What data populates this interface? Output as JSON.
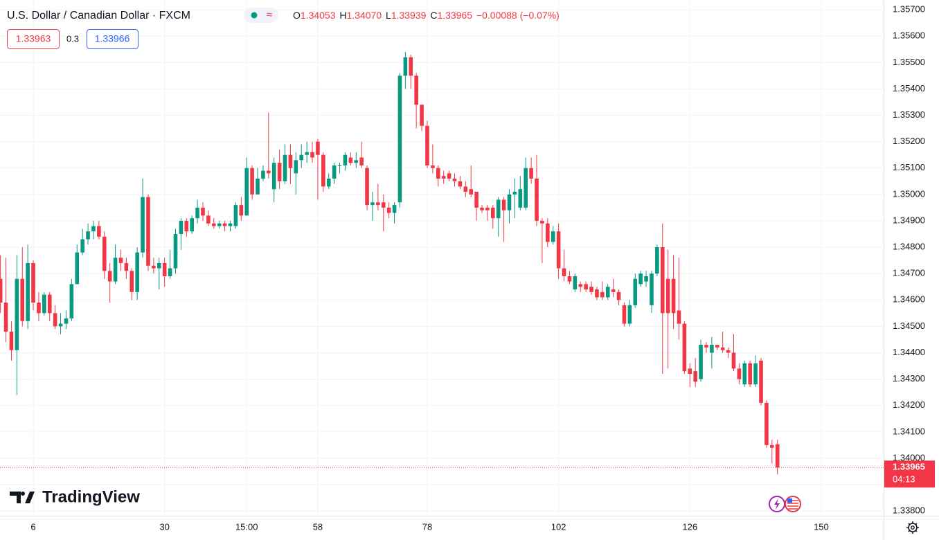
{
  "header": {
    "symbol": "U.S. Dollar / Canadian Dollar · FXCM",
    "ohlc": [
      {
        "key": "O",
        "value": "1.34053"
      },
      {
        "key": "H",
        "value": "1.34070"
      },
      {
        "key": "L",
        "value": "1.33939"
      },
      {
        "key": "C",
        "value": "1.33965"
      }
    ],
    "change": "−0.00088 (−0.07%)",
    "bid": "1.33963",
    "spread": "0.3",
    "ask": "1.33966",
    "countdown": "04:13",
    "logo": "TradingView"
  },
  "chart_data": {
    "type": "candlestick",
    "colors": {
      "up": "#089981",
      "down": "#f23645"
    },
    "xlim": [
      -0.08,
      161.4
    ],
    "ylim": [
      1.33782,
      1.35737
    ],
    "xticks": [
      6,
      30,
      {
        "value": 45,
        "label": "15:00"
      },
      58,
      78,
      102,
      126,
      150
    ],
    "yticks": [
      {
        "value": 1.338,
        "label": "1.33800"
      },
      {
        "value": 1.339,
        "label": "1.33900"
      },
      {
        "value": 1.34,
        "label": "1.34000"
      },
      {
        "value": 1.341,
        "label": "1.34100"
      },
      {
        "value": 1.342,
        "label": "1.34200"
      },
      {
        "value": 1.343,
        "label": "1.34300"
      },
      {
        "value": 1.344,
        "label": "1.34400"
      },
      {
        "value": 1.345,
        "label": "1.34500"
      },
      {
        "value": 1.346,
        "label": "1.34600"
      },
      {
        "value": 1.347,
        "label": "1.34700"
      },
      {
        "value": 1.348,
        "label": "1.34800"
      },
      {
        "value": 1.349,
        "label": "1.34900"
      },
      {
        "value": 1.35,
        "label": "1.35000"
      },
      {
        "value": 1.351,
        "label": "1.35100"
      },
      {
        "value": 1.352,
        "label": "1.35200"
      },
      {
        "value": 1.353,
        "label": "1.35300"
      },
      {
        "value": 1.354,
        "label": "1.35400"
      },
      {
        "value": 1.355,
        "label": "1.35500"
      },
      {
        "value": 1.356,
        "label": "1.35600"
      },
      {
        "value": 1.357,
        "label": "1.35700"
      }
    ],
    "grid": true,
    "open": [
      1.3468,
      1.3459,
      1.3448,
      1.3441,
      1.3468,
      1.3452,
      1.3474,
      1.3459,
      1.3455,
      1.3462,
      1.3455,
      1.345,
      1.3451,
      1.3453,
      1.3466,
      1.3478,
      1.3483,
      1.3486,
      1.3488,
      1.3484,
      1.3471,
      1.3467,
      1.3476,
      1.3474,
      1.3471,
      1.3463,
      1.3478,
      1.3499,
      1.3473,
      1.3472,
      1.3474,
      1.3469,
      1.3472,
      1.3485,
      1.349,
      1.3486,
      1.3491,
      1.3495,
      1.3492,
      1.3489,
      1.3488,
      1.3489,
      1.3488,
      1.3488,
      1.3496,
      1.3492,
      1.351,
      1.35,
      1.3506,
      1.3509,
      1.3502,
      1.3512,
      1.3505,
      1.3515,
      1.3508,
      1.3513,
      1.3515,
      1.3516,
      1.352,
      1.3515,
      1.3503,
      1.3506,
      1.3511,
      1.3511,
      1.3514,
      1.3512,
      1.3514,
      1.351,
      1.3496,
      1.3497,
      1.3497,
      1.3495,
      1.3493,
      1.3497,
      1.3545,
      1.3552,
      1.3545,
      1.3534,
      1.3526,
      1.3511,
      1.351,
      1.3507,
      1.3508,
      1.3506,
      1.3505,
      1.3503,
      1.3502,
      1.3501,
      1.3495,
      1.3495,
      1.3495,
      1.3491,
      1.3498,
      1.3494,
      1.35,
      1.3495,
      1.3495,
      1.351,
      1.3506,
      1.349,
      1.3489,
      1.3482,
      1.3486,
      1.3472,
      1.3469,
      1.3464,
      1.3466,
      1.3466,
      1.3465,
      1.3464,
      1.3463,
      1.3461,
      1.3464,
      1.3463,
      1.3458,
      1.3451,
      1.3458,
      1.3466,
      1.3467,
      1.3458,
      1.347,
      1.348,
      1.3468,
      1.3468,
      1.3456,
      1.3451,
      1.3434,
      1.3433,
      1.343,
      1.3443,
      1.344,
      1.3443,
      1.3442,
      1.3441,
      1.344,
      1.3434,
      1.3428,
      1.3436,
      1.3428,
      1.3437,
      1.3421,
      1.3405,
      1.34053
    ],
    "high": [
      1.3477,
      1.3476,
      1.3452,
      1.3477,
      1.348,
      1.3481,
      1.3475,
      1.3463,
      1.3463,
      1.3463,
      1.3458,
      1.3455,
      1.3456,
      1.3468,
      1.3481,
      1.3487,
      1.3489,
      1.349,
      1.349,
      1.3486,
      1.3474,
      1.3481,
      1.3479,
      1.3476,
      1.3472,
      1.348,
      1.3506,
      1.35,
      1.3476,
      1.3476,
      1.3476,
      1.3479,
      1.3487,
      1.3491,
      1.3491,
      1.3492,
      1.3498,
      1.3497,
      1.3494,
      1.3491,
      1.349,
      1.349,
      1.349,
      1.3497,
      1.3499,
      1.3514,
      1.3511,
      1.351,
      1.3511,
      1.3531,
      1.3514,
      1.3517,
      1.3519,
      1.3519,
      1.3516,
      1.3519,
      1.352,
      1.352,
      1.3521,
      1.3516,
      1.3508,
      1.3512,
      1.3512,
      1.3516,
      1.3516,
      1.3516,
      1.352,
      1.3511,
      1.3501,
      1.3504,
      1.35,
      1.3497,
      1.3497,
      1.3546,
      1.3554,
      1.3553,
      1.3546,
      1.3534,
      1.3528,
      1.3519,
      1.3511,
      1.3509,
      1.3509,
      1.3508,
      1.3507,
      1.3505,
      1.3511,
      1.3501,
      1.3496,
      1.3496,
      1.3496,
      1.3499,
      1.3499,
      1.3502,
      1.3506,
      1.3507,
      1.3514,
      1.3514,
      1.3515,
      1.3491,
      1.3491,
      1.3488,
      1.3489,
      1.3479,
      1.3471,
      1.347,
      1.3467,
      1.3467,
      1.3467,
      1.3465,
      1.3467,
      1.3466,
      1.3468,
      1.3464,
      1.3459,
      1.346,
      1.347,
      1.3471,
      1.3471,
      1.3471,
      1.3481,
      1.3489,
      1.3479,
      1.3477,
      1.3476,
      1.3452,
      1.3436,
      1.3438,
      1.3445,
      1.3444,
      1.3446,
      1.3443,
      1.3448,
      1.3442,
      1.3447,
      1.3436,
      1.3437,
      1.3437,
      1.3439,
      1.3438,
      1.3422,
      1.3407,
      1.3407
    ],
    "low": [
      1.3455,
      1.3444,
      1.3437,
      1.3424,
      1.345,
      1.3449,
      1.3456,
      1.3452,
      1.3454,
      1.3452,
      1.3449,
      1.3447,
      1.3449,
      1.3452,
      1.3466,
      1.3477,
      1.3481,
      1.3483,
      1.3483,
      1.3468,
      1.3459,
      1.3466,
      1.3471,
      1.3468,
      1.346,
      1.346,
      1.3476,
      1.3471,
      1.347,
      1.3464,
      1.3465,
      1.3468,
      1.347,
      1.3479,
      1.3484,
      1.3485,
      1.3489,
      1.349,
      1.3488,
      1.3487,
      1.3487,
      1.3486,
      1.3486,
      1.3487,
      1.349,
      1.3492,
      1.3498,
      1.35,
      1.3505,
      1.3506,
      1.3497,
      1.3502,
      1.3504,
      1.3504,
      1.35,
      1.351,
      1.3512,
      1.3512,
      1.3498,
      1.3501,
      1.3502,
      1.3504,
      1.3508,
      1.3509,
      1.3511,
      1.351,
      1.351,
      1.3494,
      1.349,
      1.3494,
      1.3486,
      1.3491,
      1.3489,
      1.3495,
      1.354,
      1.354,
      1.3525,
      1.3524,
      1.351,
      1.3508,
      1.3503,
      1.3504,
      1.3505,
      1.3503,
      1.3502,
      1.3499,
      1.3499,
      1.349,
      1.3493,
      1.349,
      1.3487,
      1.3484,
      1.3482,
      1.3489,
      1.3491,
      1.3494,
      1.3494,
      1.3504,
      1.3488,
      1.3474,
      1.348,
      1.3481,
      1.3468,
      1.3467,
      1.3466,
      1.3463,
      1.3463,
      1.3463,
      1.3462,
      1.346,
      1.346,
      1.346,
      1.3461,
      1.3458,
      1.345,
      1.345,
      1.3457,
      1.3465,
      1.3465,
      1.3455,
      1.3469,
      1.3432,
      1.3434,
      1.3449,
      1.3445,
      1.3432,
      1.3427,
      1.3427,
      1.3429,
      1.344,
      1.3434,
      1.3441,
      1.344,
      1.3438,
      1.3433,
      1.3428,
      1.3427,
      1.3427,
      1.3427,
      1.342,
      1.3404,
      1.3398,
      1.33939
    ],
    "close": [
      1.3459,
      1.3448,
      1.3441,
      1.3468,
      1.3452,
      1.3474,
      1.3459,
      1.3455,
      1.3462,
      1.3455,
      1.345,
      1.3451,
      1.3453,
      1.3466,
      1.3478,
      1.3483,
      1.3486,
      1.3488,
      1.3484,
      1.3471,
      1.3467,
      1.3476,
      1.3474,
      1.3471,
      1.3463,
      1.3478,
      1.3499,
      1.3473,
      1.3472,
      1.3474,
      1.3469,
      1.3472,
      1.3485,
      1.349,
      1.3486,
      1.3491,
      1.3495,
      1.3492,
      1.3489,
      1.3488,
      1.3489,
      1.3488,
      1.3489,
      1.3496,
      1.3492,
      1.351,
      1.35,
      1.3506,
      1.3509,
      1.3508,
      1.3512,
      1.3505,
      1.3515,
      1.351,
      1.3513,
      1.3515,
      1.3516,
      1.3514,
      1.3515,
      1.3503,
      1.3506,
      1.3511,
      1.3511,
      1.3515,
      1.3512,
      1.3513,
      1.3511,
      1.3496,
      1.3497,
      1.3496,
      1.3495,
      1.3493,
      1.3496,
      1.3545,
      1.3552,
      1.3545,
      1.3534,
      1.3526,
      1.3511,
      1.351,
      1.3506,
      1.3506,
      1.3506,
      1.3505,
      1.3503,
      1.3501,
      1.35,
      1.3495,
      1.3494,
      1.3494,
      1.3491,
      1.3498,
      1.3494,
      1.35,
      1.3501,
      1.3502,
      1.351,
      1.3506,
      1.349,
      1.3489,
      1.3482,
      1.3486,
      1.3472,
      1.3469,
      1.3467,
      1.3469,
      1.3465,
      1.3464,
      1.3463,
      1.3461,
      1.3461,
      1.3465,
      1.3463,
      1.346,
      1.3451,
      1.3458,
      1.3468,
      1.347,
      1.3469,
      1.347,
      1.348,
      1.3455,
      1.3455,
      1.3455,
      1.3451,
      1.3433,
      1.3432,
      1.3429,
      1.3443,
      1.3442,
      1.3443,
      1.3442,
      1.3441,
      1.344,
      1.3434,
      1.343,
      1.3436,
      1.3428,
      1.3436,
      1.3421,
      1.3405,
      1.3404,
      1.33965
    ]
  }
}
